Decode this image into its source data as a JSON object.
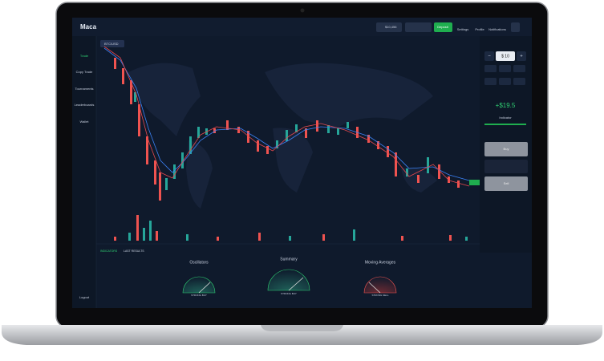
{
  "header": {
    "logo": "Maca",
    "balance": "$10,456",
    "deposit": "Deposit",
    "settings": "Settings",
    "profile": "Profile",
    "notifications": "Notifications"
  },
  "sidebar": {
    "items": [
      "Trade",
      "Copy Trade",
      "Tournaments",
      "Leaderboards",
      "Wallet"
    ],
    "logout": "Logout"
  },
  "chart": {
    "asset": "BTC/USD"
  },
  "panel": {
    "amount": "$ 10",
    "minus": "−",
    "plus": "+",
    "profit": "+$19.5",
    "indicator": "Indicator",
    "buy": "Buy",
    "sell": "Sell"
  },
  "tabs": [
    "INDICATORS",
    "LAST RESULTS"
  ],
  "gauges": [
    {
      "title": "Oscillators",
      "verdict": "STRONG BUY"
    },
    {
      "title": "Summary",
      "verdict": "STRONG BUY"
    },
    {
      "title": "Moving Averages",
      "verdict": "STRONG SELL"
    }
  ]
}
